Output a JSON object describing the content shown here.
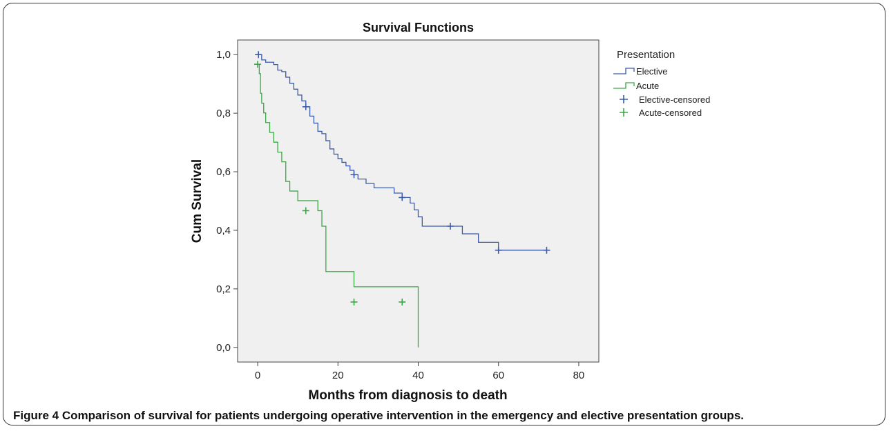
{
  "chart_data": {
    "type": "line",
    "title": "Survival Functions",
    "xlabel": "Months from diagnosis to death",
    "ylabel": "Cum Survival",
    "xlim": [
      -5,
      85
    ],
    "ylim": [
      -0.05,
      1.05
    ],
    "xticks": [
      0,
      20,
      40,
      60,
      80
    ],
    "xtick_labels": [
      "0",
      "20",
      "40",
      "60",
      "80"
    ],
    "yticks": [
      0.0,
      0.2,
      0.4,
      0.6,
      0.8,
      1.0
    ],
    "ytick_labels": [
      "0,0",
      "0,2",
      "0,4",
      "0,6",
      "0,8",
      "1,0"
    ],
    "grid": false,
    "legend": {
      "title": "Presentation",
      "position": "right",
      "entries": [
        "Elective",
        "Acute",
        "Elective-censored",
        "Acute-censored"
      ]
    },
    "series": [
      {
        "name": "Elective",
        "color": "#3b5ba9",
        "step": true,
        "x": [
          0,
          1,
          2,
          4,
          5,
          6,
          7,
          8,
          9,
          10,
          11,
          12,
          13,
          14,
          15,
          16,
          17,
          18,
          19,
          20,
          21,
          22,
          23,
          24,
          25,
          27,
          29,
          34,
          36,
          38,
          39,
          40,
          41,
          48,
          51,
          55,
          60,
          72
        ],
        "y": [
          1.0,
          0.982,
          0.974,
          0.966,
          0.947,
          0.942,
          0.923,
          0.902,
          0.882,
          0.862,
          0.842,
          0.822,
          0.79,
          0.766,
          0.738,
          0.73,
          0.706,
          0.678,
          0.66,
          0.645,
          0.632,
          0.62,
          0.605,
          0.59,
          0.575,
          0.56,
          0.545,
          0.527,
          0.512,
          0.493,
          0.47,
          0.446,
          0.414,
          0.414,
          0.388,
          0.359,
          0.332,
          0.332
        ],
        "censored": [
          [
            0.2,
            1.0
          ],
          [
            12,
            0.822
          ],
          [
            24,
            0.59
          ],
          [
            36,
            0.512
          ],
          [
            48,
            0.414
          ],
          [
            60,
            0.332
          ],
          [
            72,
            0.332
          ]
        ]
      },
      {
        "name": "Acute",
        "color": "#3aa845",
        "step": true,
        "x": [
          0,
          0.4,
          0.7,
          1.0,
          1.5,
          2.0,
          3.0,
          4.0,
          5.0,
          6.0,
          7.0,
          8.0,
          10.0,
          15.0,
          16.0,
          17.0,
          24.0,
          40.0
        ],
        "y": [
          0.967,
          0.935,
          0.868,
          0.834,
          0.801,
          0.768,
          0.734,
          0.701,
          0.667,
          0.634,
          0.567,
          0.534,
          0.501,
          0.467,
          0.414,
          0.259,
          0.207,
          0.155
        ],
        "end": [
          40.0,
          0.0
        ],
        "censored": [
          [
            0.0,
            0.967
          ],
          [
            12,
            0.467
          ],
          [
            24,
            0.155
          ],
          [
            36,
            0.155
          ]
        ]
      }
    ]
  },
  "caption": {
    "figure_label": "Figure 4",
    "text": "Comparison of survival for patients undergoing operative intervention in the emergency and elective presentation groups."
  }
}
